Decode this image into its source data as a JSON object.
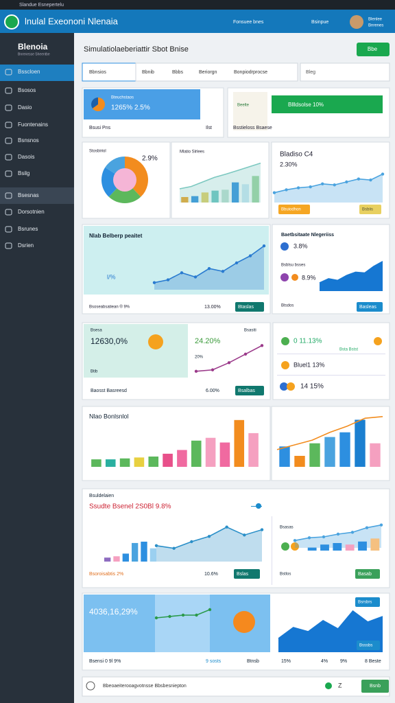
{
  "top_bar": {
    "window_title": "Slandue Esnepertelu",
    "app_title": "lnulal Exeononi Nlenaia",
    "menu": [
      "Fonsuee bnes",
      "Bsinpue"
    ],
    "user": [
      "Blenlee",
      "Bnrenes"
    ]
  },
  "sidebar": {
    "title": "Blenoia",
    "subtitle": "Bnrenesse Sheentbe",
    "items": [
      "Bsscloen",
      "Bsosos",
      "Dasio",
      "Fuontenains",
      "Bsnsnos",
      "Dasois",
      "Bsilg",
      "Bsesnas",
      "Dorsotnien",
      "Bsrunes",
      "Dsrien"
    ]
  },
  "toolbar": {
    "title": "Simulatiolaeberiattir Sbot Bnise",
    "button": "Bbe"
  },
  "tabs": {
    "search": "Bbnsios",
    "items": [
      "Bbnib",
      "Bbbs",
      "Beriorgn",
      "Bonpiodrprocse"
    ],
    "dropdown": "Bleg"
  },
  "panels": [
    {
      "texts": [
        "Bteuchstaos",
        "1265% 2.5%",
        "Bsusi Pns",
        "Ilst"
      ],
      "charts": [
        {
          "type": "pie",
          "values": [
            65,
            35
          ],
          "colors": [
            "#f28c1e",
            "#1d5fa8"
          ]
        }
      ]
    },
    {
      "texts": [
        "Beelte",
        "Bllldsolse 10%",
        "Bsstieloss Bsaese"
      ],
      "charts": []
    },
    {
      "texts": [
        "Stosbiriol",
        "2.9%"
      ],
      "charts": [
        {
          "type": "pie",
          "values": [
            38,
            24,
            22,
            16
          ],
          "colors": [
            "#f28c1e",
            "#5cb85c",
            "#2d8fe0",
            "#4aa3df"
          ],
          "hole_color": "#f5b5d6"
        }
      ]
    },
    {
      "texts": [
        "Mlatio Slrlees"
      ],
      "charts": [
        {
          "type": "bar",
          "values": [
            12,
            14,
            22,
            26,
            28,
            44,
            40,
            58
          ],
          "colors": [
            "#f5a21e",
            "#2d8fe0",
            "#e8d060",
            "#6cc5c0",
            "#bfe0d0",
            "#2d8fe0",
            "#cde8f5",
            "#9ed49e"
          ],
          "ylim": [
            0,
            90
          ]
        },
        {
          "type": "area",
          "values": [
            30,
            35,
            45,
            55,
            62,
            70,
            78,
            86
          ],
          "color": "#7cc8c0",
          "ylim": [
            0,
            90
          ]
        }
      ]
    },
    {
      "texts": [
        "Bladiso C4",
        "2.30%",
        "Bbuiodhon",
        "Bsbiis"
      ],
      "charts": [
        {
          "type": "area",
          "values": [
            20,
            26,
            30,
            32,
            38,
            36,
            42,
            48,
            46,
            58
          ],
          "color": "#4aa3df",
          "markers": true,
          "ylim": [
            0,
            70
          ]
        }
      ]
    },
    {
      "texts": [
        "Nlab Belberp peaitet",
        "l/%",
        "Bsoseabsatiean ® 9%",
        "13.00%",
        "Btaslas"
      ],
      "charts": [
        {
          "type": "area",
          "values": [
            10,
            14,
            24,
            18,
            30,
            26,
            38,
            48,
            62
          ],
          "color": "#2a7bd0",
          "markers": true,
          "ylim": [
            0,
            70
          ]
        }
      ]
    },
    {
      "texts": [
        "Baetbsitaate Nlegeriiss",
        "3.8%",
        "Bsblsu bsses",
        "8.9%",
        "Btsdos",
        "Basleas"
      ],
      "charts": [
        {
          "type": "area",
          "values": [
            20,
            30,
            26,
            38,
            46,
            44,
            60,
            72
          ],
          "color": "#1677d2",
          "solid": true,
          "ylim": [
            0,
            80
          ]
        }
      ]
    },
    {
      "texts": [
        "Bsesa",
        "12630,0%",
        "Btib",
        "Bsasiti",
        "24.20%",
        "20%",
        "Baosst Basreesd",
        "6.00%",
        "Bsalbas"
      ],
      "charts": [
        {
          "type": "line",
          "values": [
            2,
            3,
            8,
            14,
            20
          ],
          "color": "#9b3a8a",
          "markers": true,
          "ylim": [
            0,
            24
          ]
        }
      ]
    },
    {
      "texts": [
        "0 11.13%",
        "Bsta Bstst",
        "Bluel1 13%",
        "14 15%"
      ],
      "charts": []
    },
    {
      "texts": [
        "Nlao Bonlsnlol"
      ],
      "charts": [
        {
          "type": "bar",
          "values": [
            8,
            8,
            9,
            10,
            11,
            14,
            18,
            28,
            31,
            26,
            50,
            36
          ],
          "colors": [
            "#5cb85c",
            "#2ab0a0",
            "#5cb85c",
            "#e8d040",
            "#5cb85c",
            "#e8508a",
            "#f06aa0",
            "#5cb85c",
            "#f5a0c0",
            "#f06aa0",
            "#f28c1e",
            "#f5a0c0"
          ],
          "ylim": [
            0,
            55
          ]
        }
      ]
    },
    {
      "texts": [],
      "charts": [
        {
          "type": "bar",
          "values": [
            26,
            14,
            30,
            38,
            44,
            60,
            30
          ],
          "colors": [
            "#2d8fe0",
            "#f28c1e",
            "#5cb85c",
            "#4aa3df",
            "#2d8fe0",
            "#1b7fd0",
            "#f5a0c0"
          ],
          "ylim": [
            0,
            70
          ]
        },
        {
          "type": "line",
          "values": [
            22,
            28,
            34,
            44,
            52,
            62,
            64
          ],
          "color": "#f28c1e",
          "ylim": [
            0,
            70
          ]
        }
      ]
    },
    {
      "texts": [
        "Bsuldelaien",
        "Ssudte Bsenel 2S0Bl 9.8%",
        "Bsoroisabtis 2%",
        "10.6%",
        "Bslas",
        "Bsasas",
        "Bstlos",
        "Basab"
      ],
      "charts": [
        {
          "type": "bar",
          "values": [
            6,
            8,
            12,
            28,
            30,
            20
          ],
          "colors": [
            "#8e6cc0",
            "#f5a0c0",
            "#2d8fe0",
            "#4aa3df",
            "#2d8fe0",
            "#9bd0f0"
          ],
          "ylim": [
            0,
            60
          ]
        },
        {
          "type": "area",
          "values": [
            24,
            20,
            30,
            38,
            52,
            40,
            48
          ],
          "color": "#2a8fc8",
          "markers": true,
          "ylim": [
            0,
            60
          ]
        },
        {
          "type": "area",
          "values": [
            16,
            22,
            24,
            30,
            34,
            44,
            50
          ],
          "color": "#4aa3df",
          "markers": true,
          "ylim": [
            0,
            60
          ]
        },
        {
          "type": "bar",
          "values": [
            4,
            8,
            10,
            8,
            12,
            16
          ],
          "colors": [
            "#2d8fe0",
            "#2d8fe0",
            "#2d8fe0",
            "#f5a0c0",
            "#2d8fe0",
            "#f5c080"
          ],
          "ylim": [
            0,
            20
          ]
        }
      ]
    },
    {
      "texts": [
        "4036,16,29%",
        "Bsensi 0 9l 9%",
        "9 sosts",
        "Btnsb",
        "Bsrsbrs",
        "Bsssbs",
        "15%",
        "4%",
        "9%",
        "8 Beste"
      ],
      "charts": [
        {
          "type": "line",
          "values": [
            10,
            12,
            14,
            14,
            22
          ],
          "color": "#2a9a4a",
          "markers": true,
          "ylim": [
            0,
            30
          ]
        },
        {
          "type": "area",
          "values": [
            20,
            36,
            30,
            46,
            34,
            60,
            44,
            52
          ],
          "color": "#1677d2",
          "solid": true,
          "ylim": [
            0,
            70
          ]
        }
      ]
    }
  ],
  "footer": {
    "input": "Bbeoaeiterooagvotnsse Bbsbesniepton",
    "icon_text": "Z",
    "button": "Bsnb"
  }
}
